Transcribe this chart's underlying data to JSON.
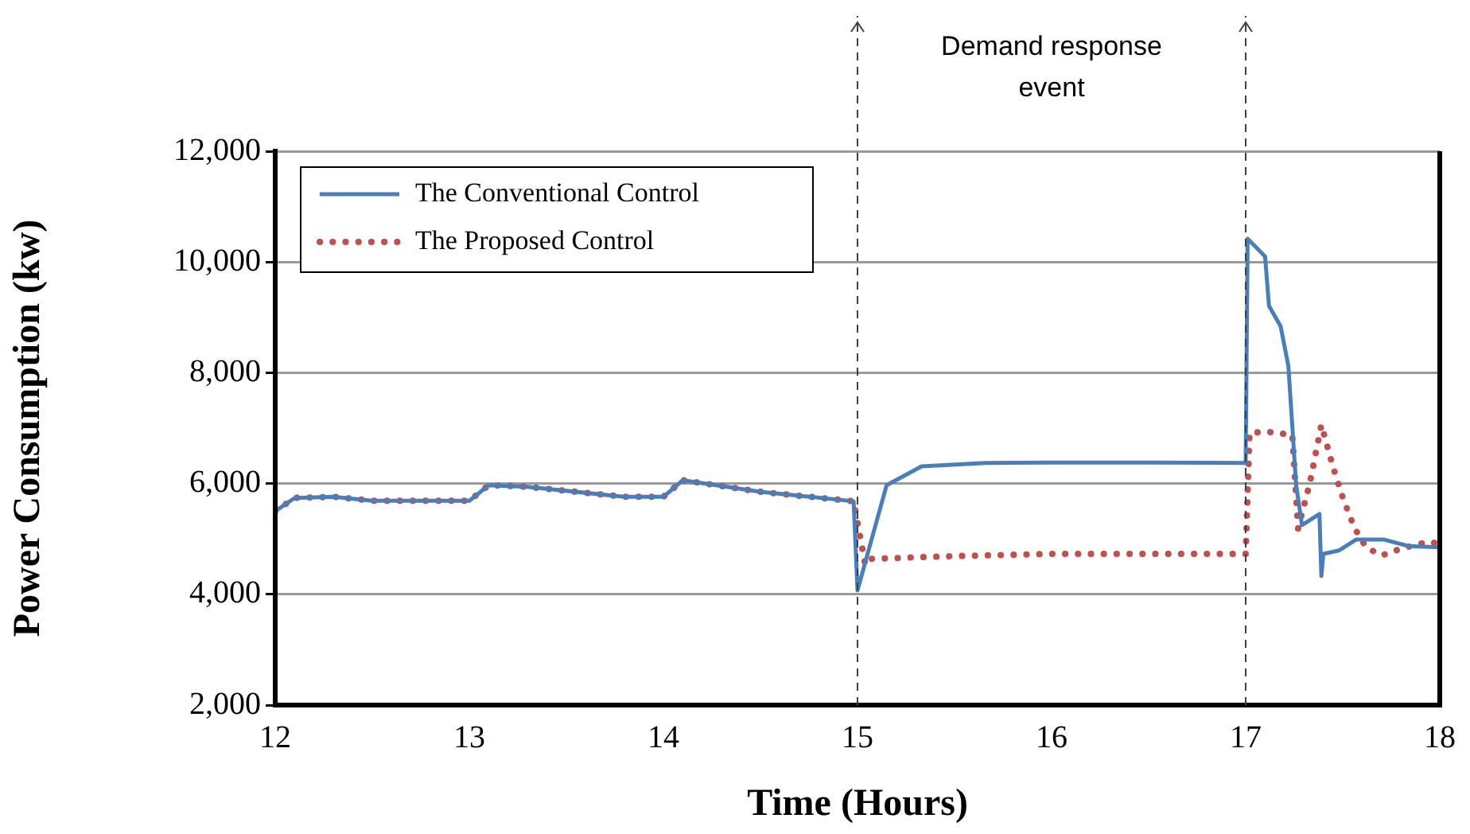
{
  "chart_data": {
    "type": "line",
    "xlabel": "Time (Hours)",
    "ylabel": "Power Consumption (kw)",
    "annotations": [
      "Demand response event"
    ],
    "xlim": [
      12,
      18
    ],
    "xticks": [
      12,
      13,
      14,
      15,
      16,
      17,
      18
    ],
    "ylim": [
      2000,
      12000
    ],
    "yticks": [
      {
        "value": 2000,
        "label": "2,000"
      },
      {
        "value": 4000,
        "label": "4,000"
      },
      {
        "value": 6000,
        "label": "6,000"
      },
      {
        "value": 8000,
        "label": "8,000"
      },
      {
        "value": 10000,
        "label": "10,000"
      },
      {
        "value": 12000,
        "label": "12,000"
      }
    ],
    "grid": "y",
    "legend": "top left",
    "marker": "none",
    "ref_lines": [
      {
        "axis": "x",
        "value": 15,
        "label": null,
        "color": "#404040",
        "line_style": "dashed"
      },
      {
        "axis": "x",
        "value": 17,
        "label": null,
        "color": "#404040",
        "line_style": "dashed"
      }
    ],
    "series": [
      {
        "name": "The Conventional Control",
        "color": "#4a7ebb",
        "line_style": "solid",
        "x": [
          12,
          12.1,
          12.3,
          12.5,
          13,
          13.1,
          13.3,
          13.8,
          14,
          14.1,
          14.5,
          14.98,
          15,
          15.15,
          15.33,
          15.66,
          16,
          16.5,
          17,
          17.01,
          17.1,
          17.12,
          17.18,
          17.22,
          17.26,
          17.29,
          17.38,
          17.39,
          17.4,
          17.48,
          17.57,
          17.71,
          17.84,
          18
        ],
        "values": [
          5500,
          5740,
          5760,
          5690,
          5690,
          5970,
          5940,
          5760,
          5760,
          6060,
          5850,
          5680,
          4070,
          5970,
          6310,
          6370,
          6380,
          6380,
          6370,
          10420,
          10100,
          9210,
          8840,
          8120,
          5970,
          5250,
          5450,
          4330,
          4730,
          4790,
          4990,
          4990,
          4870,
          4850
        ]
      },
      {
        "name": "The Proposed Control",
        "color": "#c0504d",
        "line_style": "dotted",
        "x": [
          12,
          12.1,
          12.3,
          12.5,
          13,
          13.1,
          13.3,
          13.8,
          14,
          14.1,
          14.5,
          14.98,
          15.04,
          15.07,
          15.5,
          16,
          17,
          17.02,
          17.1,
          17.24,
          17.27,
          17.33,
          17.39,
          17.45,
          17.5,
          17.56,
          17.62,
          17.7,
          17.78,
          17.88,
          17.95,
          18
        ],
        "values": [
          5500,
          5740,
          5760,
          5690,
          5690,
          5970,
          5940,
          5760,
          5760,
          6060,
          5850,
          5680,
          4530,
          4640,
          4690,
          4730,
          4730,
          6910,
          6940,
          6880,
          5190,
          6000,
          7060,
          6300,
          5750,
          5200,
          4850,
          4700,
          4800,
          4900,
          4950,
          4900
        ]
      }
    ]
  }
}
